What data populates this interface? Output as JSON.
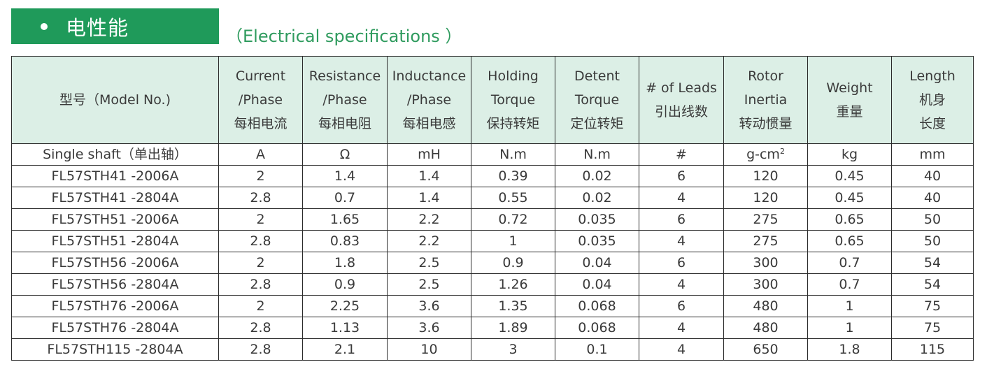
{
  "title": {
    "text": "电性能"
  },
  "subtitle": "（Electrical specifications ）",
  "table": {
    "headers": [
      [
        "型号（Model No.)"
      ],
      [
        "Current",
        "/Phase",
        "每相电流"
      ],
      [
        "Resistance",
        "/Phase",
        "每相电阻"
      ],
      [
        "Inductance",
        "/Phase",
        "每相电感"
      ],
      [
        "Holding",
        "Torque",
        "保持转矩"
      ],
      [
        "Detent",
        "Torque",
        "定位转矩"
      ],
      [
        "# of Leads",
        "引出线数"
      ],
      [
        "Rotor",
        "Inertia",
        "转动惯量"
      ],
      [
        "Weight",
        "重量"
      ],
      [
        "Length",
        "机身",
        "长度"
      ]
    ],
    "units": [
      "Single shaft（单出轴）",
      "A",
      "Ω",
      "mH",
      "N.m",
      "N.m",
      "#",
      "g-cm",
      "kg",
      "mm"
    ],
    "units_superscript": "2",
    "rows": [
      [
        "FL57STH41 -2006A",
        "2",
        "1.4",
        "1.4",
        "0.39",
        "0.02",
        "6",
        "120",
        "0.45",
        "40"
      ],
      [
        "FL57STH41 -2804A",
        "2.8",
        "0.7",
        "1.4",
        "0.55",
        "0.02",
        "4",
        "120",
        "0.45",
        "40"
      ],
      [
        "FL57STH51 -2006A",
        "2",
        "1.65",
        "2.2",
        "0.72",
        "0.035",
        "6",
        "275",
        "0.65",
        "50"
      ],
      [
        "FL57STH51 -2804A",
        "2.8",
        "0.83",
        "2.2",
        "1",
        "0.035",
        "4",
        "275",
        "0.65",
        "50"
      ],
      [
        "FL57STH56 -2006A",
        "2",
        "1.8",
        "2.5",
        "0.9",
        "0.04",
        "6",
        "300",
        "0.7",
        "54"
      ],
      [
        "FL57STH56 -2804A",
        "2.8",
        "0.9",
        "2.5",
        "1.26",
        "0.04",
        "4",
        "300",
        "0.7",
        "54"
      ],
      [
        "FL57STH76 -2006A",
        "2",
        "2.25",
        "3.6",
        "1.35",
        "0.068",
        "6",
        "480",
        "1",
        "75"
      ],
      [
        "FL57STH76 -2804A",
        "2.8",
        "1.13",
        "3.6",
        "1.89",
        "0.068",
        "4",
        "480",
        "1",
        "75"
      ],
      [
        "FL57STH115 -2804A",
        "2.8",
        "2.1",
        "10",
        "3",
        "0.1",
        "4",
        "650",
        "1.8",
        "115"
      ]
    ]
  },
  "colors": {
    "title_bg": "#1f9a5a",
    "header_bg": "#dcefe6",
    "subtitle": "#2f9b5e"
  }
}
